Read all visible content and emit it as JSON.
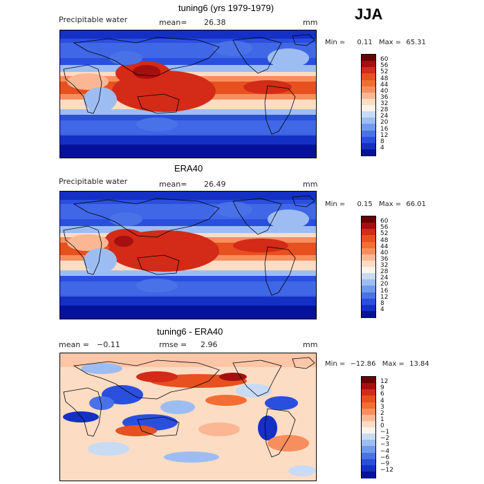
{
  "season": "JJA",
  "panels": [
    {
      "title": "tuning6 (yrs 1979-1979)",
      "variable": "Precipitable water",
      "mean_label": "mean=",
      "mean_value": "26.38",
      "rmse_label": "",
      "rmse_value": "",
      "units": "mm",
      "min_label": "Min =",
      "min_value": "0.11",
      "max_label": "Max =",
      "max_value": "65.31",
      "colorbar": {
        "ticks": [
          "60",
          "56",
          "52",
          "48",
          "44",
          "40",
          "36",
          "32",
          "28",
          "24",
          "20",
          "16",
          "12",
          "8",
          "4"
        ],
        "colors": [
          "#6b0000",
          "#a50f0f",
          "#d42a18",
          "#e8501f",
          "#f46d32",
          "#f88e5d",
          "#fbb794",
          "#fddcc4",
          "#fbf3ea",
          "#c7dbf5",
          "#9dbdf2",
          "#6f9aee",
          "#4a72e8",
          "#2a4fdf",
          "#1530c4",
          "#07129a"
        ]
      }
    },
    {
      "title": "ERA40",
      "variable": "Precipitable water",
      "mean_label": "mean=",
      "mean_value": "26.49",
      "rmse_label": "",
      "rmse_value": "",
      "units": "mm",
      "min_label": "Min =",
      "min_value": "0.15",
      "max_label": "Max =",
      "max_value": "66.01",
      "colorbar": {
        "ticks": [
          "60",
          "56",
          "52",
          "48",
          "44",
          "40",
          "36",
          "32",
          "28",
          "24",
          "20",
          "16",
          "12",
          "8",
          "4"
        ],
        "colors": [
          "#6b0000",
          "#a50f0f",
          "#d42a18",
          "#e8501f",
          "#f46d32",
          "#f88e5d",
          "#fbb794",
          "#fddcc4",
          "#fbf3ea",
          "#c7dbf5",
          "#9dbdf2",
          "#6f9aee",
          "#4a72e8",
          "#2a4fdf",
          "#1530c4",
          "#07129a"
        ]
      }
    },
    {
      "title": "tuning6 - ERA40",
      "variable": "",
      "mean_label": "mean =",
      "mean_value": "−0.11",
      "rmse_label": "rmse =",
      "rmse_value": "2.96",
      "units": "mm",
      "min_label": "Min =",
      "min_value": "−12.86",
      "max_label": "Max =",
      "max_value": "13.84",
      "colorbar": {
        "ticks": [
          "12",
          "9",
          "6",
          "4",
          "3",
          "2",
          "1",
          "0",
          "−1",
          "−2",
          "−3",
          "−4",
          "−6",
          "−9",
          "−12"
        ],
        "colors": [
          "#6b0000",
          "#a50f0f",
          "#d42a18",
          "#e8501f",
          "#f46d32",
          "#f88e5d",
          "#fbb794",
          "#fddcc4",
          "#fbf3ea",
          "#c7dbf5",
          "#9dbdf2",
          "#6f9aee",
          "#4a72e8",
          "#2a4fdf",
          "#1530c4",
          "#07129a"
        ]
      }
    }
  ]
}
